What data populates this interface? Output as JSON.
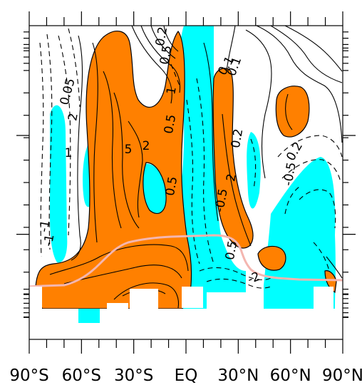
{
  "chart_data": {
    "type": "contour",
    "x_axis": {
      "range": [
        -90,
        90
      ],
      "ticks": [
        {
          "value": -90,
          "label": "90°S"
        },
        {
          "value": -60,
          "label": "60°S"
        },
        {
          "value": -30,
          "label": "30°S"
        },
        {
          "value": 0,
          "label": "EQ"
        },
        {
          "value": 30,
          "label": "30°N"
        },
        {
          "value": 60,
          "label": "60°N"
        },
        {
          "value": 90,
          "label": "90°N"
        }
      ]
    },
    "y_axis": {
      "labels": []
    },
    "shading": {
      "positive": "#ff8000",
      "negative": "#00ffff"
    },
    "contour_labels": [
      "0.2",
      "0.1",
      "0.05",
      "2",
      "5",
      "2",
      "0.5",
      "1",
      "2",
      "0.1",
      "0.5",
      "0.2",
      "-0.5",
      "0.2",
      "-1",
      "-1",
      "-0.5",
      "0.5",
      "0.5",
      "-2",
      "1"
    ],
    "overlay_line": {
      "color": "#f4b6b0",
      "description": "tropopause"
    }
  }
}
